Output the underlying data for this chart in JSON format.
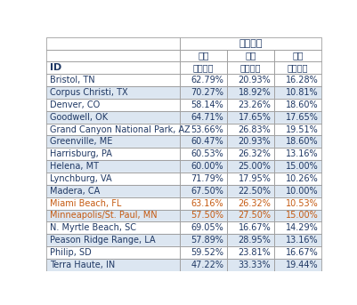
{
  "title": "割点验证",
  "col_groups": [
    "训练",
    "验证",
    "测试"
  ],
  "col_sub": "行百分比",
  "header_id": "ID",
  "rows": [
    [
      "Bristol, TN",
      "62.79%",
      "20.93%",
      "16.28%"
    ],
    [
      "Corpus Christi, TX",
      "70.27%",
      "18.92%",
      "10.81%"
    ],
    [
      "Denver, CO",
      "58.14%",
      "23.26%",
      "18.60%"
    ],
    [
      "Goodwell, OK",
      "64.71%",
      "17.65%",
      "17.65%"
    ],
    [
      "Grand Canyon National Park, AZ",
      "53.66%",
      "26.83%",
      "19.51%"
    ],
    [
      "Greenville, ME",
      "60.47%",
      "20.93%",
      "18.60%"
    ],
    [
      "Harrisburg, PA",
      "60.53%",
      "26.32%",
      "13.16%"
    ],
    [
      "Helena, MT",
      "60.00%",
      "25.00%",
      "15.00%"
    ],
    [
      "Lynchburg, VA",
      "71.79%",
      "17.95%",
      "10.26%"
    ],
    [
      "Madera, CA",
      "67.50%",
      "22.50%",
      "10.00%"
    ],
    [
      "Miami Beach, FL",
      "63.16%",
      "26.32%",
      "10.53%"
    ],
    [
      "Minneapolis/St. Paul, MN",
      "57.50%",
      "27.50%",
      "15.00%"
    ],
    [
      "N. Myrtle Beach, SC",
      "69.05%",
      "16.67%",
      "14.29%"
    ],
    [
      "Peason Ridge Range, LA",
      "57.89%",
      "28.95%",
      "13.16%"
    ],
    [
      "Philip, SD",
      "59.52%",
      "23.81%",
      "16.67%"
    ],
    [
      "Terra Haute, IN",
      "47.22%",
      "33.33%",
      "19.44%"
    ]
  ],
  "bg_white": "#ffffff",
  "bg_light_blue": "#dce6f1",
  "text_color": "#1f3864",
  "border_color": "#a0a0a0",
  "figsize": [
    4.02,
    3.43
  ],
  "dpi": 100,
  "orange_rows": [
    10,
    11
  ],
  "orange_color": "#c55a11"
}
